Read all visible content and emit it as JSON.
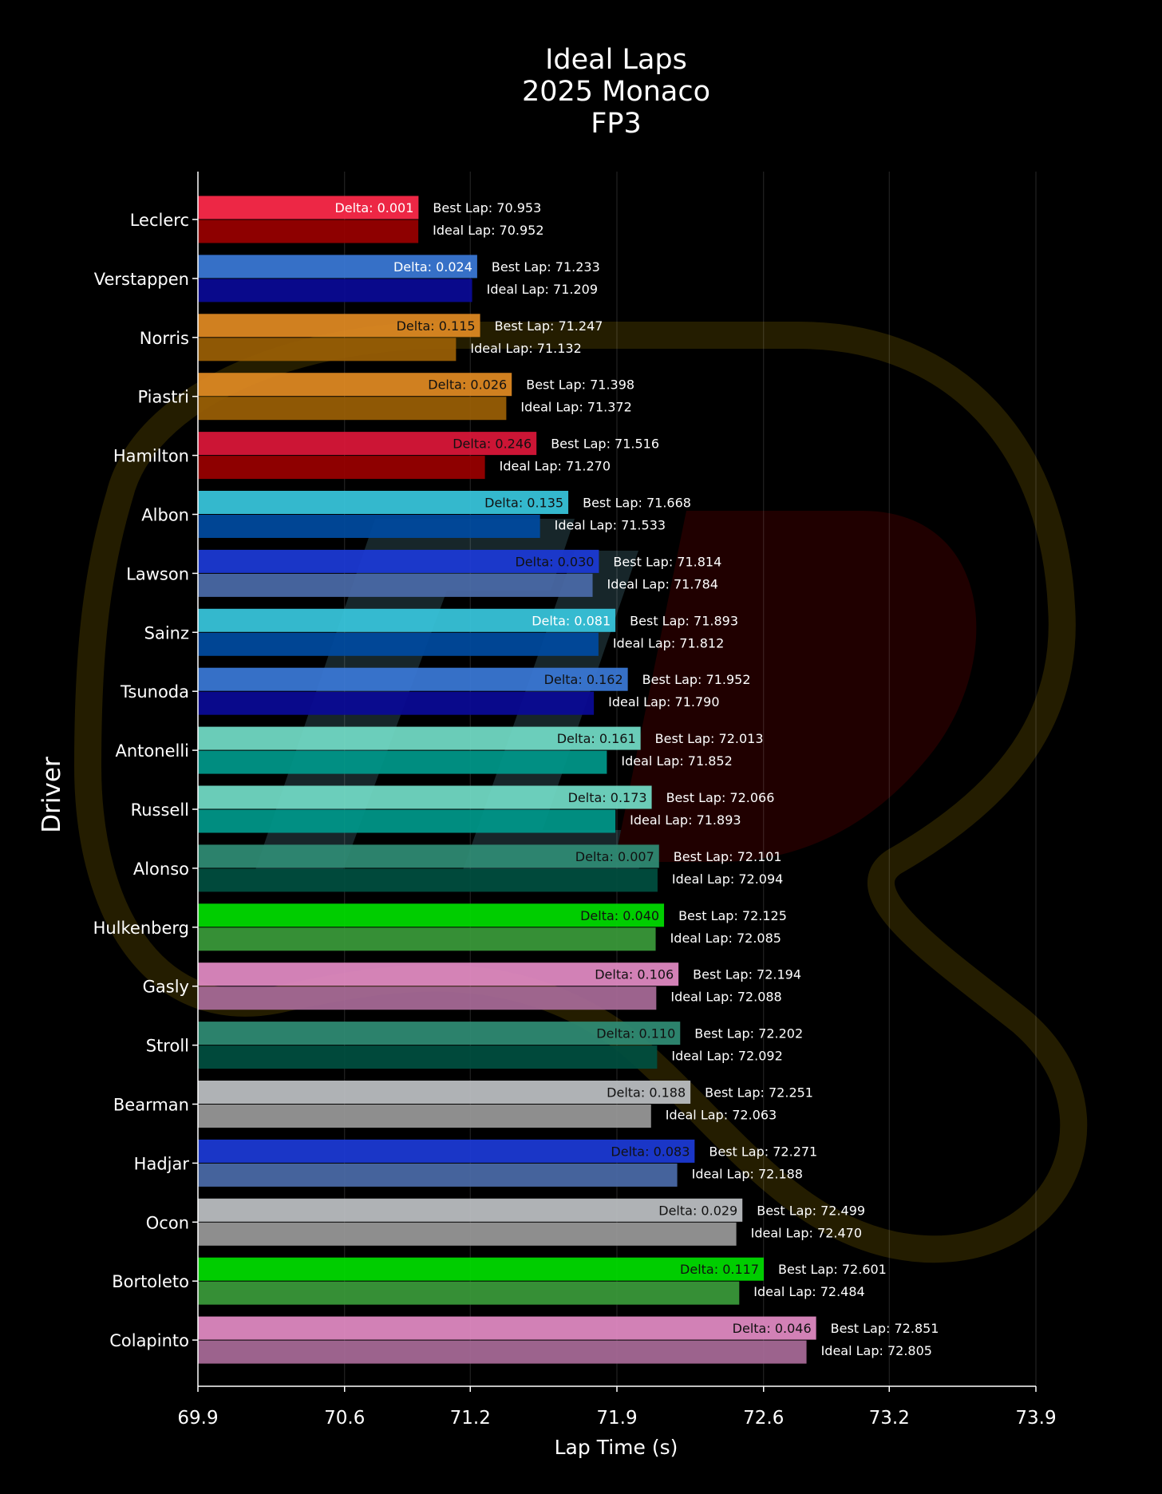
{
  "chart_data": {
    "type": "bar",
    "orientation": "horizontal",
    "title": [
      "Ideal Laps",
      "2025 Monaco",
      "FP3"
    ],
    "xlabel": "Lap Time (s)",
    "ylabel": "Driver",
    "xlim": [
      69.9,
      73.9
    ],
    "xticks": [
      "69.9",
      "70.6",
      "71.2",
      "71.9",
      "72.6",
      "73.2",
      "73.9"
    ],
    "grid": "vertical",
    "series_labels": {
      "best_prefix": "Best Lap: ",
      "ideal_prefix": "Ideal Lap: ",
      "delta_prefix": "Delta: "
    },
    "drivers": [
      {
        "name": "Leclerc",
        "best": 70.953,
        "ideal": 70.952,
        "delta": 0.001,
        "best_color": "#ff2a4a",
        "ideal_color": "#990000",
        "delta_text_color": "#ffffff"
      },
      {
        "name": "Verstappen",
        "best": 71.233,
        "ideal": 71.209,
        "delta": 0.024,
        "best_color": "#3a78d6",
        "ideal_color": "#0a0a96",
        "delta_text_color": "#ffffff"
      },
      {
        "name": "Norris",
        "best": 71.247,
        "ideal": 71.132,
        "delta": 0.115,
        "best_color": "#e08a22",
        "ideal_color": "#9a5f05",
        "delta_text_color": "#111111"
      },
      {
        "name": "Piastri",
        "best": 71.398,
        "ideal": 71.372,
        "delta": 0.026,
        "best_color": "#e08a22",
        "ideal_color": "#9a5f05",
        "delta_text_color": "#111111"
      },
      {
        "name": "Hamilton",
        "best": 71.516,
        "ideal": 71.27,
        "delta": 0.246,
        "best_color": "#dc1739",
        "ideal_color": "#990000",
        "delta_text_color": "#111111"
      },
      {
        "name": "Albon",
        "best": 71.668,
        "ideal": 71.533,
        "delta": 0.135,
        "best_color": "#38c6dd",
        "ideal_color": "#004a9f",
        "delta_text_color": "#111111"
      },
      {
        "name": "Lawson",
        "best": 71.814,
        "ideal": 71.784,
        "delta": 0.03,
        "best_color": "#1c3ad6",
        "ideal_color": "#4a6aa8",
        "delta_text_color": "#111111"
      },
      {
        "name": "Sainz",
        "best": 71.893,
        "ideal": 71.812,
        "delta": 0.081,
        "best_color": "#38c6dd",
        "ideal_color": "#004a9f",
        "delta_text_color": "#ffffff"
      },
      {
        "name": "Tsunoda",
        "best": 71.952,
        "ideal": 71.79,
        "delta": 0.162,
        "best_color": "#3a78d6",
        "ideal_color": "#0a0a96",
        "delta_text_color": "#111111"
      },
      {
        "name": "Antonelli",
        "best": 72.013,
        "ideal": 71.852,
        "delta": 0.161,
        "best_color": "#72dbc6",
        "ideal_color": "#00988a",
        "delta_text_color": "#111111"
      },
      {
        "name": "Russell",
        "best": 72.066,
        "ideal": 71.893,
        "delta": 0.173,
        "best_color": "#72dbc6",
        "ideal_color": "#00988a",
        "delta_text_color": "#111111"
      },
      {
        "name": "Alonso",
        "best": 72.101,
        "ideal": 72.094,
        "delta": 0.007,
        "best_color": "#2f8c74",
        "ideal_color": "#004f3f",
        "delta_text_color": "#111111"
      },
      {
        "name": "Hulkenberg",
        "best": 72.125,
        "ideal": 72.085,
        "delta": 0.04,
        "best_color": "#00dd00",
        "ideal_color": "#3a9a3a",
        "delta_text_color": "#111111"
      },
      {
        "name": "Gasly",
        "best": 72.194,
        "ideal": 72.088,
        "delta": 0.106,
        "best_color": "#e28bc4",
        "ideal_color": "#a86a98",
        "delta_text_color": "#111111"
      },
      {
        "name": "Stroll",
        "best": 72.202,
        "ideal": 72.092,
        "delta": 0.11,
        "best_color": "#2f8c74",
        "ideal_color": "#004f3f",
        "delta_text_color": "#111111"
      },
      {
        "name": "Bearman",
        "best": 72.251,
        "ideal": 72.063,
        "delta": 0.188,
        "best_color": "#bcc0c3",
        "ideal_color": "#999999",
        "delta_text_color": "#111111"
      },
      {
        "name": "Hadjar",
        "best": 72.271,
        "ideal": 72.188,
        "delta": 0.083,
        "best_color": "#1c3ad6",
        "ideal_color": "#4a6aa8",
        "delta_text_color": "#111111"
      },
      {
        "name": "Ocon",
        "best": 72.499,
        "ideal": 72.47,
        "delta": 0.029,
        "best_color": "#bcc0c3",
        "ideal_color": "#999999",
        "delta_text_color": "#111111"
      },
      {
        "name": "Bortoleto",
        "best": 72.601,
        "ideal": 72.484,
        "delta": 0.117,
        "best_color": "#00dd00",
        "ideal_color": "#3a9a3a",
        "delta_text_color": "#111111"
      },
      {
        "name": "Colapinto",
        "best": 72.851,
        "ideal": 72.805,
        "delta": 0.046,
        "best_color": "#e28bc4",
        "ideal_color": "#a86a98",
        "delta_text_color": "#111111"
      }
    ]
  }
}
